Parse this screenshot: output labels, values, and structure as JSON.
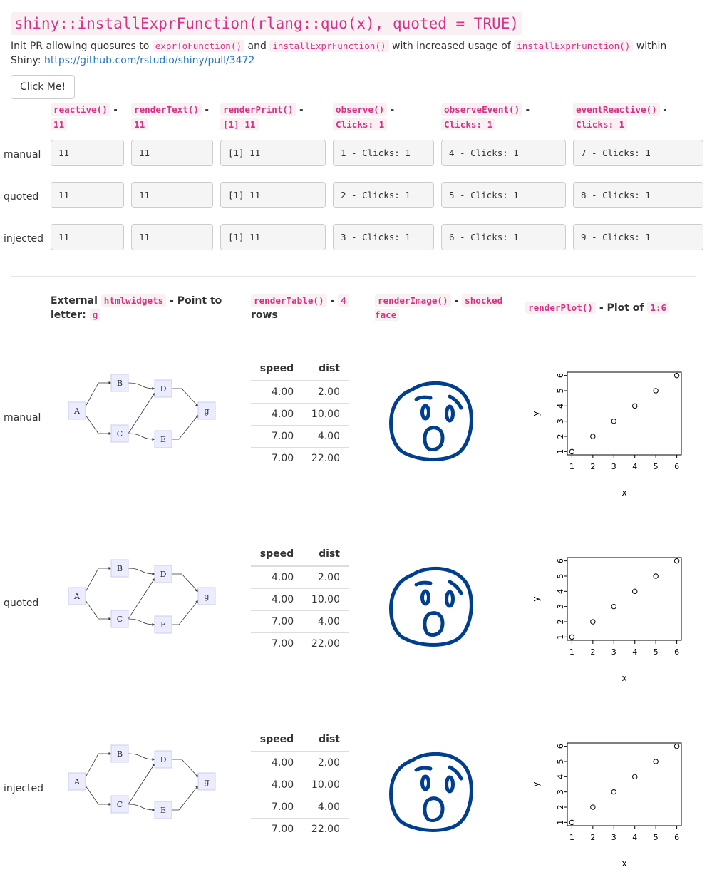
{
  "header": {
    "title": "shiny::installExprFunction(rlang::quo(x), quoted = TRUE)",
    "intro_1": "Init PR allowing quosures to ",
    "intro_code_1": "exprToFunction()",
    "intro_2": " and ",
    "intro_code_2": "installExprFunction()",
    "intro_3": " with increased usage of ",
    "intro_code_3": "installExprFunction()",
    "intro_4": " within Shiny: ",
    "link": "https://github.com/rstudio/shiny/pull/3472"
  },
  "button": {
    "label": "Click Me!"
  },
  "columns": [
    {
      "code": "reactive()",
      "sep": " - ",
      "value": "11"
    },
    {
      "code": "renderText()",
      "sep": " - ",
      "value": "11"
    },
    {
      "code": "renderPrint()",
      "sep": " - ",
      "value": "[1] 11"
    },
    {
      "code": "observe()",
      "sep": " - ",
      "value": "Clicks: 1"
    },
    {
      "code": "observeEvent()",
      "sep": " - ",
      "value": "Clicks: 1"
    },
    {
      "code": "eventReactive()",
      "sep": " - ",
      "value": "Clicks: 1"
    }
  ],
  "rows": [
    {
      "label": "manual",
      "values": [
        "11",
        "11",
        "[1] 11",
        "1 - Clicks: 1",
        "4 - Clicks: 1",
        "7 - Clicks: 1"
      ]
    },
    {
      "label": "quoted",
      "values": [
        "11",
        "11",
        "[1] 11",
        "2 - Clicks: 1",
        "5 - Clicks: 1",
        "8 - Clicks: 1"
      ]
    },
    {
      "label": "injected",
      "values": [
        "11",
        "11",
        "[1] 11",
        "3 - Clicks: 1",
        "6 - Clicks: 1",
        "9 - Clicks: 1"
      ]
    }
  ],
  "section2": {
    "head_widget": {
      "pre": "External ",
      "code": "htmlwidgets",
      "post": " - Point to letter: ",
      "code2": "g"
    },
    "head_table": {
      "code": "renderTable()",
      "sep": " - ",
      "code2": "4",
      "post": " rows"
    },
    "head_image": {
      "code": "renderImage()",
      "sep": " - ",
      "code2": "shocked face"
    },
    "head_plot": {
      "code": "renderPlot()",
      "post": " - Plot of ",
      "code2": "1:6"
    },
    "row_labels": [
      "manual",
      "quoted",
      "injected"
    ]
  },
  "diagram": {
    "nodes": [
      "A",
      "B",
      "C",
      "D",
      "E",
      "g"
    ],
    "edges": [
      [
        "A",
        "B"
      ],
      [
        "A",
        "C"
      ],
      [
        "B",
        "D"
      ],
      [
        "C",
        "D"
      ],
      [
        "C",
        "E"
      ],
      [
        "D",
        "g"
      ],
      [
        "E",
        "g"
      ]
    ],
    "node_fill": "#ececff",
    "node_stroke": "#ccccee"
  },
  "table": {
    "headers": [
      "speed",
      "dist"
    ],
    "rows": [
      [
        "4.00",
        "2.00"
      ],
      [
        "4.00",
        "10.00"
      ],
      [
        "7.00",
        "4.00"
      ],
      [
        "7.00",
        "22.00"
      ]
    ]
  },
  "face": {
    "color": "#003e8e"
  },
  "chart_data": {
    "type": "scatter",
    "x": [
      1,
      2,
      3,
      4,
      5,
      6
    ],
    "y": [
      1,
      2,
      3,
      4,
      5,
      6
    ],
    "xlabel": "x",
    "ylabel": "y",
    "xlim": [
      1,
      6
    ],
    "ylim": [
      1,
      6
    ],
    "xticks": [
      "1",
      "2",
      "3",
      "4",
      "5",
      "6"
    ],
    "yticks": [
      "1",
      "2",
      "3",
      "4",
      "5",
      "6"
    ]
  }
}
